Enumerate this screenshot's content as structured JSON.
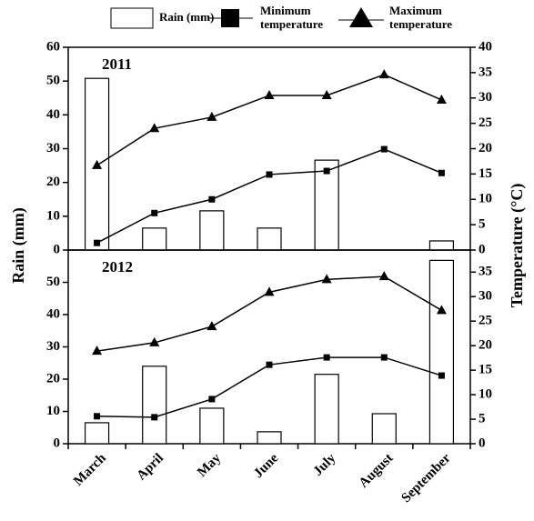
{
  "chart_data": [
    {
      "type": "combo",
      "title": "2011",
      "ylabel": "Rain (mm)",
      "y2label": "Temperature (°C)",
      "series": [
        {
          "name": "Rain (mm)",
          "type": "bar",
          "color": "#ffffff",
          "values": [
            50.8,
            6.5,
            11.6,
            6.5,
            26.6,
            0,
            2.7
          ]
        },
        {
          "name": "Minimum temperature",
          "type": "line",
          "marker": "square",
          "axis": "y2",
          "color": "#000000",
          "values": [
            1.4,
            7.3,
            10,
            14.9,
            15.6,
            19.9,
            15.2
          ]
        },
        {
          "name": "Maximum temperature",
          "type": "line",
          "marker": "triangle",
          "axis": "y2",
          "color": "#000000",
          "values": [
            16.7,
            24,
            26.2,
            30.5,
            30.5,
            34.6,
            29.6
          ]
        }
      ],
      "ylim": [
        0,
        60
      ],
      "yticks": [
        0,
        10,
        20,
        30,
        40,
        50,
        60
      ],
      "y2lim": [
        0,
        40
      ],
      "y2ticks": [
        0,
        5,
        10,
        15,
        20,
        25,
        30,
        35,
        40
      ]
    },
    {
      "type": "combo",
      "title": "2012",
      "categories": [
        "March",
        "April",
        "May",
        "June",
        "July",
        "August",
        "September"
      ],
      "series": [
        {
          "type": "bar",
          "color": "#ffffff",
          "values": [
            6.5,
            24,
            11,
            3.7,
            21.5,
            9.3,
            56.8
          ]
        },
        {
          "type": "line",
          "marker": "square",
          "axis": "y2",
          "color": "#000000",
          "values": [
            5.6,
            5.4,
            9.1,
            16.1,
            17.6,
            17.6,
            13.9
          ]
        },
        {
          "type": "line",
          "marker": "triangle",
          "axis": "y2",
          "color": "#000000",
          "values": [
            18.9,
            20.6,
            23.9,
            30.9,
            33.5,
            34.1,
            27.2
          ]
        }
      ],
      "ylim": [
        0,
        60
      ],
      "yticks": [
        0,
        10,
        20,
        30,
        40,
        50
      ],
      "y2lim": [
        0,
        39.5
      ],
      "y2ticks": [
        0,
        5,
        10,
        15,
        20,
        25,
        30,
        35
      ]
    }
  ]
}
